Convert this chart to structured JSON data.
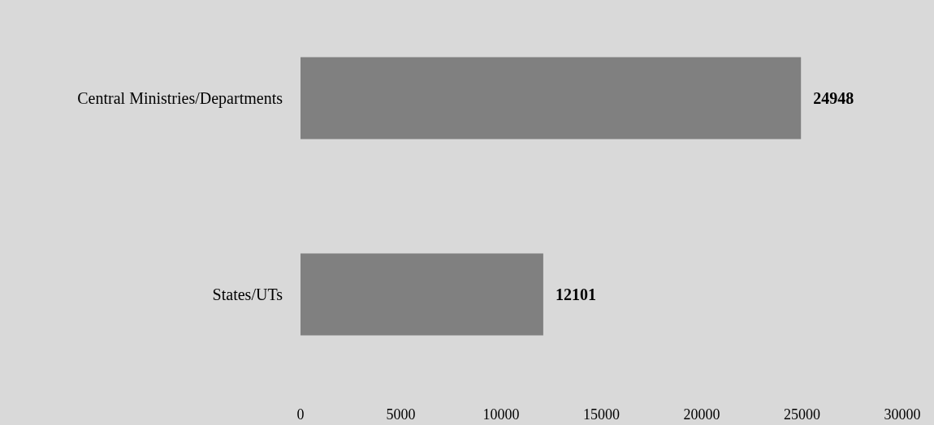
{
  "chart_data": {
    "type": "bar",
    "orientation": "horizontal",
    "categories": [
      "Central Ministries/Departments",
      "States/UTs"
    ],
    "values": [
      24948,
      12101
    ],
    "color": "#808080",
    "xlim": [
      0,
      30000
    ],
    "xticks": [
      0,
      5000,
      10000,
      15000,
      20000,
      25000,
      30000
    ],
    "grid": false,
    "data_labels": true
  }
}
